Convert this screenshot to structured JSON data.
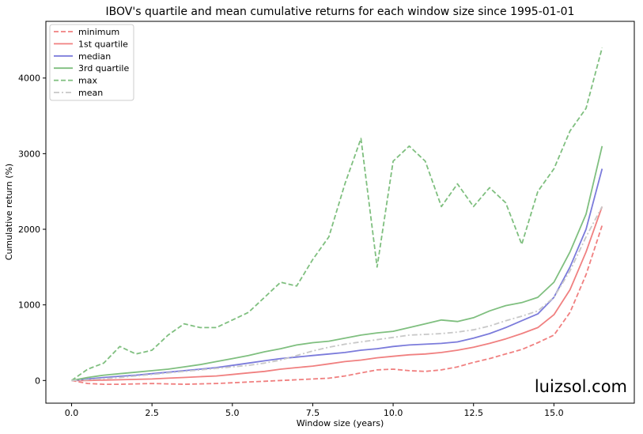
{
  "chart_data": {
    "type": "line",
    "title": "IBOV's quartile and mean cumulative returns for each window size since 1995-01-01",
    "xlabel": "Window size (years)",
    "ylabel": "Cumulative return (%)",
    "xlim": [
      -0.8,
      17.5
    ],
    "ylim": [
      -300,
      4750
    ],
    "xticks": [
      0.0,
      2.5,
      5.0,
      7.5,
      10.0,
      12.5,
      15.0
    ],
    "xtick_labels": [
      "0.0",
      "2.5",
      "5.0",
      "7.5",
      "10.0",
      "12.5",
      "15.0"
    ],
    "yticks": [
      0,
      1000,
      2000,
      3000,
      4000
    ],
    "ytick_labels": [
      "0",
      "1000",
      "2000",
      "3000",
      "4000"
    ],
    "grid": false,
    "legend_position": "top-left",
    "x": [
      0,
      0.5,
      1,
      1.5,
      2,
      2.5,
      3,
      3.5,
      4,
      4.5,
      5,
      5.5,
      6,
      6.5,
      7,
      7.5,
      8,
      8.5,
      9,
      9.5,
      10,
      10.5,
      11,
      11.5,
      12,
      12.5,
      13,
      13.5,
      14,
      14.5,
      15,
      15.5,
      16,
      16.5
    ],
    "series": [
      {
        "name": "minimum",
        "color": "#f08080",
        "style": "dashed",
        "values": [
          0,
          -40,
          -50,
          -50,
          -45,
          -40,
          -45,
          -50,
          -45,
          -40,
          -30,
          -20,
          -10,
          0,
          10,
          20,
          30,
          60,
          100,
          140,
          150,
          130,
          120,
          140,
          180,
          240,
          290,
          350,
          410,
          500,
          600,
          900,
          1400,
          2050
        ]
      },
      {
        "name": "1st quartile",
        "color": "#f08080",
        "style": "solid",
        "values": [
          0,
          0,
          5,
          10,
          15,
          20,
          30,
          40,
          50,
          60,
          80,
          100,
          120,
          150,
          170,
          190,
          220,
          250,
          270,
          300,
          320,
          340,
          350,
          370,
          400,
          440,
          490,
          550,
          620,
          700,
          870,
          1200,
          1700,
          2300
        ]
      },
      {
        "name": "median",
        "color": "#7b7bdb",
        "style": "solid",
        "values": [
          0,
          20,
          40,
          55,
          70,
          90,
          110,
          130,
          150,
          170,
          200,
          230,
          260,
          290,
          310,
          330,
          350,
          370,
          400,
          420,
          450,
          470,
          480,
          490,
          510,
          560,
          620,
          700,
          790,
          880,
          1100,
          1500,
          2000,
          2800
        ]
      },
      {
        "name": "3rd quartile",
        "color": "#7fbf7f",
        "style": "solid",
        "values": [
          0,
          40,
          70,
          90,
          110,
          130,
          150,
          180,
          210,
          250,
          290,
          330,
          380,
          420,
          470,
          500,
          520,
          560,
          600,
          630,
          650,
          700,
          750,
          800,
          780,
          830,
          920,
          990,
          1030,
          1100,
          1300,
          1700,
          2200,
          3100
        ]
      },
      {
        "name": "max",
        "color": "#7fbf7f",
        "style": "dashed",
        "values": [
          0,
          150,
          230,
          450,
          350,
          400,
          600,
          750,
          700,
          700,
          800,
          900,
          1100,
          1300,
          1250,
          1600,
          1900,
          2600,
          3200,
          1500,
          2900,
          3100,
          2900,
          2300,
          2600,
          2300,
          2550,
          2350,
          1800,
          2500,
          2800,
          3300,
          3600,
          4400
        ]
      },
      {
        "name": "mean",
        "color": "#c8c8c8",
        "style": "dashdot",
        "values": [
          0,
          10,
          25,
          40,
          60,
          80,
          100,
          120,
          140,
          160,
          180,
          200,
          230,
          270,
          330,
          390,
          440,
          480,
          510,
          540,
          570,
          600,
          610,
          620,
          640,
          670,
          720,
          790,
          850,
          920,
          1100,
          1450,
          1900,
          2300
        ]
      }
    ]
  },
  "watermark": "luizsol.com"
}
